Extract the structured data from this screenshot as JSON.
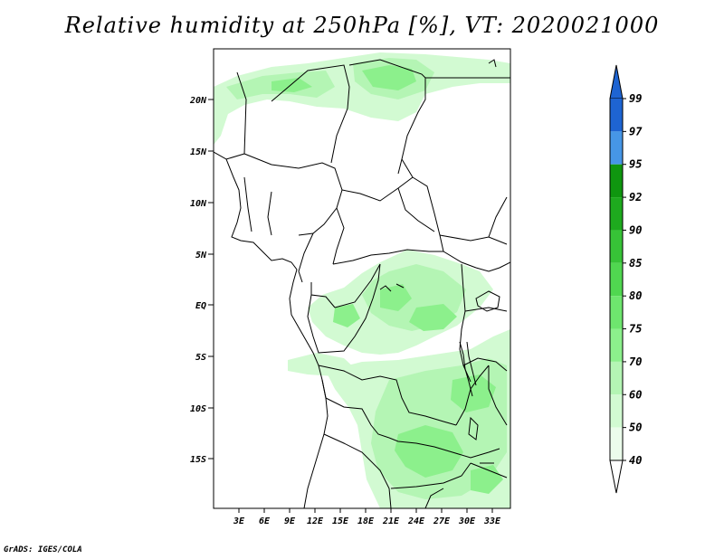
{
  "header": {
    "title": "Relative humidity at 250hPa [%], VT: 2020021000"
  },
  "footer": {
    "credit": "GrADS: IGES/COLA"
  },
  "map": {
    "lat_labels": [
      "20N",
      "15N",
      "10N",
      "5N",
      "EQ",
      "5S",
      "10S",
      "15S"
    ],
    "lon_labels": [
      "3E",
      "6E",
      "9E",
      "12E",
      "15E",
      "18E",
      "21E",
      "24E",
      "27E",
      "30E",
      "33E"
    ]
  },
  "colorbar": {
    "labels": [
      "99",
      "97",
      "95",
      "92",
      "90",
      "85",
      "80",
      "75",
      "70",
      "60",
      "50",
      "40"
    ],
    "colors": [
      "#1e64d2",
      "#1e64d2",
      "#4696e6",
      "#0f960f",
      "#1eaa1e",
      "#37c337",
      "#50d750",
      "#6ee66e",
      "#8cf08c",
      "#b4f5b4",
      "#d2fad2",
      "#ebfceb"
    ]
  }
}
